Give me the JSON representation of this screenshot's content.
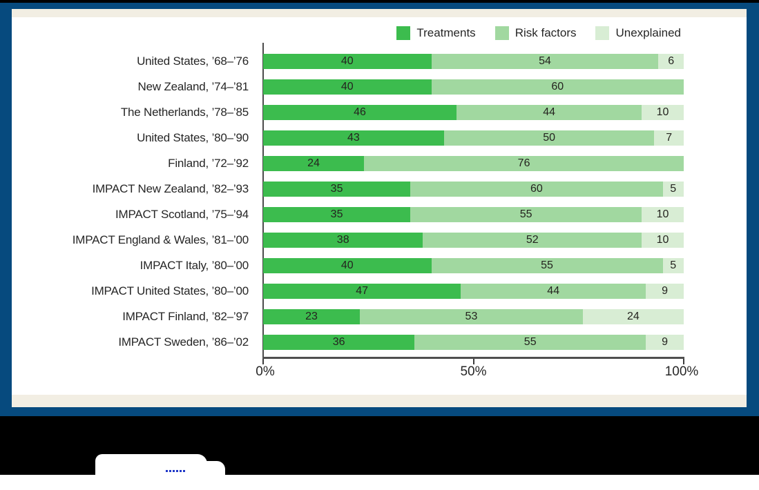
{
  "page": {
    "frame_color": "#064A7E",
    "panel_color": "#F2EEE3",
    "black_band_color": "#000000"
  },
  "chart_data": {
    "type": "bar",
    "orientation": "horizontal",
    "stacked": true,
    "unit": "percent",
    "xlim": [
      0,
      100
    ],
    "x_ticks": [
      "0%",
      "50%",
      "100%"
    ],
    "grid": false,
    "legend_position": "top-right",
    "series": [
      {
        "name": "Treatments",
        "color": "#3CBC4E"
      },
      {
        "name": "Risk factors",
        "color": "#A1D8A0"
      },
      {
        "name": "Unexplained",
        "color": "#D8EDD4"
      }
    ],
    "rows": [
      {
        "label": "United States, ’68–’76",
        "values": [
          40,
          54,
          6
        ]
      },
      {
        "label": "New Zealand, ’74–’81",
        "values": [
          40,
          60,
          0
        ]
      },
      {
        "label": "The Netherlands, ’78–’85",
        "values": [
          46,
          44,
          10
        ]
      },
      {
        "label": "United States, ’80–’90",
        "values": [
          43,
          50,
          7
        ]
      },
      {
        "label": "Finland, ’72–’92",
        "values": [
          24,
          76,
          0
        ]
      },
      {
        "label": "IMPACT New Zealand, ’82–’93",
        "values": [
          35,
          60,
          5
        ]
      },
      {
        "label": "IMPACT Scotland, ’75–’94",
        "values": [
          35,
          55,
          10
        ]
      },
      {
        "label": "IMPACT England & Wales, ’81–’00",
        "values": [
          38,
          52,
          10
        ]
      },
      {
        "label": "IMPACT Italy, ’80–’00",
        "values": [
          40,
          55,
          5
        ]
      },
      {
        "label": "IMPACT United States, ’80–’00",
        "values": [
          47,
          44,
          9
        ]
      },
      {
        "label": "IMPACT Finland, ’82–’97",
        "values": [
          23,
          53,
          24
        ]
      },
      {
        "label": "IMPACT Sweden, ’86–’02",
        "values": [
          36,
          55,
          9
        ]
      }
    ]
  }
}
